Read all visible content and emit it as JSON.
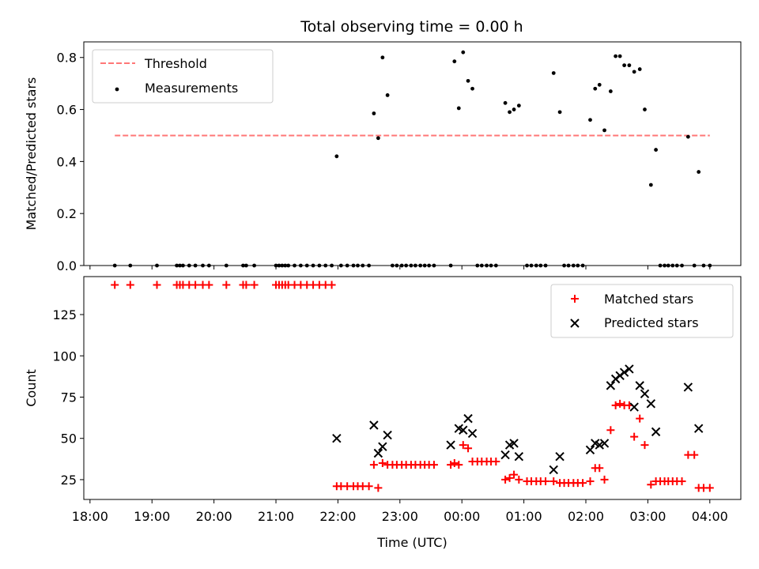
{
  "chart_data": [
    {
      "type": "scatter",
      "title": "Total observing time = 0.00 h",
      "xlabel": "",
      "ylabel": "Matched/Predicted stars",
      "xlim": [
        -0.1,
        10.5
      ],
      "ylim": [
        0,
        0.86
      ],
      "yticks": [
        0.0,
        0.2,
        0.4,
        0.6,
        0.8
      ],
      "ytick_labels": [
        "0.0",
        "0.2",
        "0.4",
        "0.6",
        "0.8"
      ],
      "legend_position": "top-left",
      "threshold": {
        "name": "Threshold",
        "value": 0.5,
        "x_range": [
          0.4,
          10.0
        ],
        "color": "#ff7777"
      },
      "series": [
        {
          "name": "Measurements",
          "color": "#000000",
          "points": [
            [
              0.4,
              0
            ],
            [
              0.65,
              0
            ],
            [
              1.08,
              0
            ],
            [
              1.4,
              0
            ],
            [
              1.45,
              0
            ],
            [
              1.5,
              0
            ],
            [
              1.6,
              0
            ],
            [
              1.7,
              0
            ],
            [
              1.82,
              0
            ],
            [
              1.92,
              0
            ],
            [
              2.2,
              0
            ],
            [
              2.47,
              0
            ],
            [
              2.52,
              0
            ],
            [
              2.65,
              0
            ],
            [
              3.0,
              0
            ],
            [
              3.05,
              0
            ],
            [
              3.1,
              0
            ],
            [
              3.15,
              0
            ],
            [
              3.2,
              0
            ],
            [
              3.3,
              0
            ],
            [
              3.4,
              0
            ],
            [
              3.5,
              0
            ],
            [
              3.6,
              0
            ],
            [
              3.7,
              0
            ],
            [
              3.8,
              0
            ],
            [
              3.9,
              0
            ],
            [
              3.98,
              0.42
            ],
            [
              4.05,
              0
            ],
            [
              4.15,
              0
            ],
            [
              4.25,
              0
            ],
            [
              4.32,
              0
            ],
            [
              4.4,
              0
            ],
            [
              4.5,
              0
            ],
            [
              4.58,
              0.585
            ],
            [
              4.65,
              0.49
            ],
            [
              4.72,
              0.8
            ],
            [
              4.8,
              0.655
            ],
            [
              4.88,
              0
            ],
            [
              4.95,
              0
            ],
            [
              5.03,
              0
            ],
            [
              5.1,
              0
            ],
            [
              5.18,
              0
            ],
            [
              5.25,
              0
            ],
            [
              5.33,
              0
            ],
            [
              5.4,
              0
            ],
            [
              5.47,
              0
            ],
            [
              5.55,
              0
            ],
            [
              5.82,
              0
            ],
            [
              5.88,
              0.785
            ],
            [
              5.95,
              0.605
            ],
            [
              6.02,
              0.82
            ],
            [
              6.1,
              0.71
            ],
            [
              6.17,
              0.68
            ],
            [
              6.25,
              0
            ],
            [
              6.32,
              0
            ],
            [
              6.4,
              0
            ],
            [
              6.47,
              0
            ],
            [
              6.55,
              0
            ],
            [
              6.7,
              0.625
            ],
            [
              6.77,
              0.59
            ],
            [
              6.84,
              0.6
            ],
            [
              6.92,
              0.615
            ],
            [
              7.05,
              0
            ],
            [
              7.12,
              0
            ],
            [
              7.2,
              0
            ],
            [
              7.27,
              0
            ],
            [
              7.35,
              0
            ],
            [
              7.48,
              0.74
            ],
            [
              7.58,
              0.59
            ],
            [
              7.65,
              0
            ],
            [
              7.72,
              0
            ],
            [
              7.8,
              0
            ],
            [
              7.87,
              0
            ],
            [
              7.95,
              0
            ],
            [
              8.07,
              0.56
            ],
            [
              8.15,
              0.68
            ],
            [
              8.22,
              0.695
            ],
            [
              8.3,
              0.52
            ],
            [
              8.4,
              0.67
            ],
            [
              8.48,
              0.805
            ],
            [
              8.55,
              0.805
            ],
            [
              8.62,
              0.77
            ],
            [
              8.7,
              0.77
            ],
            [
              8.78,
              0.745
            ],
            [
              8.87,
              0.755
            ],
            [
              8.95,
              0.6
            ],
            [
              9.05,
              0.31
            ],
            [
              9.13,
              0.445
            ],
            [
              9.2,
              0
            ],
            [
              9.27,
              0
            ],
            [
              9.33,
              0
            ],
            [
              9.4,
              0
            ],
            [
              9.47,
              0
            ],
            [
              9.55,
              0
            ],
            [
              9.65,
              0.495
            ],
            [
              9.75,
              0
            ],
            [
              9.82,
              0.36
            ],
            [
              9.9,
              0
            ],
            [
              10.0,
              0
            ]
          ]
        }
      ]
    },
    {
      "type": "scatter",
      "title": "",
      "xlabel": "Time (UTC)",
      "ylabel": "Count",
      "xlim": [
        -0.1,
        10.5
      ],
      "ylim": [
        13,
        148
      ],
      "yticks": [
        25,
        50,
        75,
        100,
        125
      ],
      "ytick_labels": [
        "25",
        "50",
        "75",
        "100",
        "125"
      ],
      "xticks": [
        0,
        1,
        2,
        3,
        4,
        5,
        6,
        7,
        8,
        9,
        10
      ],
      "xtick_labels": [
        "18:00",
        "19:00",
        "20:00",
        "21:00",
        "22:00",
        "23:00",
        "00:00",
        "01:00",
        "02:00",
        "03:00",
        "04:00"
      ],
      "legend_position": "top-right",
      "series": [
        {
          "name": "Matched stars",
          "marker": "plus",
          "color": "#ff0000",
          "points": [
            [
              0.4,
              143
            ],
            [
              0.65,
              143
            ],
            [
              1.08,
              143
            ],
            [
              1.4,
              143
            ],
            [
              1.45,
              143
            ],
            [
              1.5,
              143
            ],
            [
              1.6,
              143
            ],
            [
              1.7,
              143
            ],
            [
              1.82,
              143
            ],
            [
              1.92,
              143
            ],
            [
              2.2,
              143
            ],
            [
              2.47,
              143
            ],
            [
              2.52,
              143
            ],
            [
              2.65,
              143
            ],
            [
              3.0,
              143
            ],
            [
              3.05,
              143
            ],
            [
              3.1,
              143
            ],
            [
              3.15,
              143
            ],
            [
              3.2,
              143
            ],
            [
              3.3,
              143
            ],
            [
              3.4,
              143
            ],
            [
              3.5,
              143
            ],
            [
              3.6,
              143
            ],
            [
              3.7,
              143
            ],
            [
              3.8,
              143
            ],
            [
              3.9,
              143
            ],
            [
              3.98,
              21
            ],
            [
              4.05,
              21
            ],
            [
              4.15,
              21
            ],
            [
              4.25,
              21
            ],
            [
              4.32,
              21
            ],
            [
              4.4,
              21
            ],
            [
              4.5,
              21
            ],
            [
              4.58,
              34
            ],
            [
              4.65,
              20
            ],
            [
              4.72,
              35
            ],
            [
              4.8,
              34
            ],
            [
              4.88,
              34
            ],
            [
              4.95,
              34
            ],
            [
              5.03,
              34
            ],
            [
              5.1,
              34
            ],
            [
              5.18,
              34
            ],
            [
              5.25,
              34
            ],
            [
              5.33,
              34
            ],
            [
              5.4,
              34
            ],
            [
              5.47,
              34
            ],
            [
              5.55,
              34
            ],
            [
              5.82,
              34
            ],
            [
              5.88,
              35
            ],
            [
              5.95,
              34
            ],
            [
              6.02,
              46
            ],
            [
              6.1,
              44
            ],
            [
              6.17,
              36
            ],
            [
              6.25,
              36
            ],
            [
              6.32,
              36
            ],
            [
              6.4,
              36
            ],
            [
              6.47,
              36
            ],
            [
              6.55,
              36
            ],
            [
              6.7,
              25
            ],
            [
              6.77,
              26
            ],
            [
              6.84,
              28
            ],
            [
              6.92,
              25
            ],
            [
              7.05,
              24
            ],
            [
              7.12,
              24
            ],
            [
              7.2,
              24
            ],
            [
              7.27,
              24
            ],
            [
              7.35,
              24
            ],
            [
              7.48,
              24
            ],
            [
              7.58,
              23
            ],
            [
              7.65,
              23
            ],
            [
              7.72,
              23
            ],
            [
              7.8,
              23
            ],
            [
              7.87,
              23
            ],
            [
              7.95,
              23
            ],
            [
              8.07,
              24
            ],
            [
              8.15,
              32
            ],
            [
              8.22,
              32
            ],
            [
              8.3,
              25
            ],
            [
              8.4,
              55
            ],
            [
              8.48,
              70
            ],
            [
              8.55,
              71
            ],
            [
              8.62,
              70
            ],
            [
              8.7,
              70
            ],
            [
              8.78,
              51
            ],
            [
              8.87,
              62
            ],
            [
              8.95,
              46
            ],
            [
              9.05,
              22
            ],
            [
              9.13,
              24
            ],
            [
              9.2,
              24
            ],
            [
              9.27,
              24
            ],
            [
              9.33,
              24
            ],
            [
              9.4,
              24
            ],
            [
              9.47,
              24
            ],
            [
              9.55,
              24
            ],
            [
              9.65,
              40
            ],
            [
              9.75,
              40
            ],
            [
              9.82,
              20
            ],
            [
              9.9,
              20
            ],
            [
              10.0,
              20
            ]
          ]
        },
        {
          "name": "Predicted stars",
          "marker": "x",
          "color": "#000000",
          "points": [
            [
              3.98,
              50
            ],
            [
              4.58,
              58
            ],
            [
              4.65,
              41
            ],
            [
              4.72,
              45
            ],
            [
              4.8,
              52
            ],
            [
              5.82,
              46
            ],
            [
              5.95,
              56
            ],
            [
              6.02,
              55
            ],
            [
              6.1,
              62
            ],
            [
              6.17,
              53
            ],
            [
              6.7,
              40
            ],
            [
              6.77,
              46
            ],
            [
              6.84,
              47
            ],
            [
              6.92,
              39
            ],
            [
              7.48,
              31
            ],
            [
              7.58,
              39
            ],
            [
              8.07,
              43
            ],
            [
              8.15,
              47
            ],
            [
              8.22,
              46
            ],
            [
              8.3,
              47
            ],
            [
              8.4,
              82
            ],
            [
              8.48,
              86
            ],
            [
              8.55,
              88
            ],
            [
              8.62,
              90
            ],
            [
              8.7,
              92
            ],
            [
              8.78,
              69
            ],
            [
              8.87,
              82
            ],
            [
              8.95,
              77
            ],
            [
              9.05,
              71
            ],
            [
              9.13,
              54
            ],
            [
              9.65,
              81
            ],
            [
              9.82,
              56
            ]
          ]
        }
      ]
    }
  ]
}
